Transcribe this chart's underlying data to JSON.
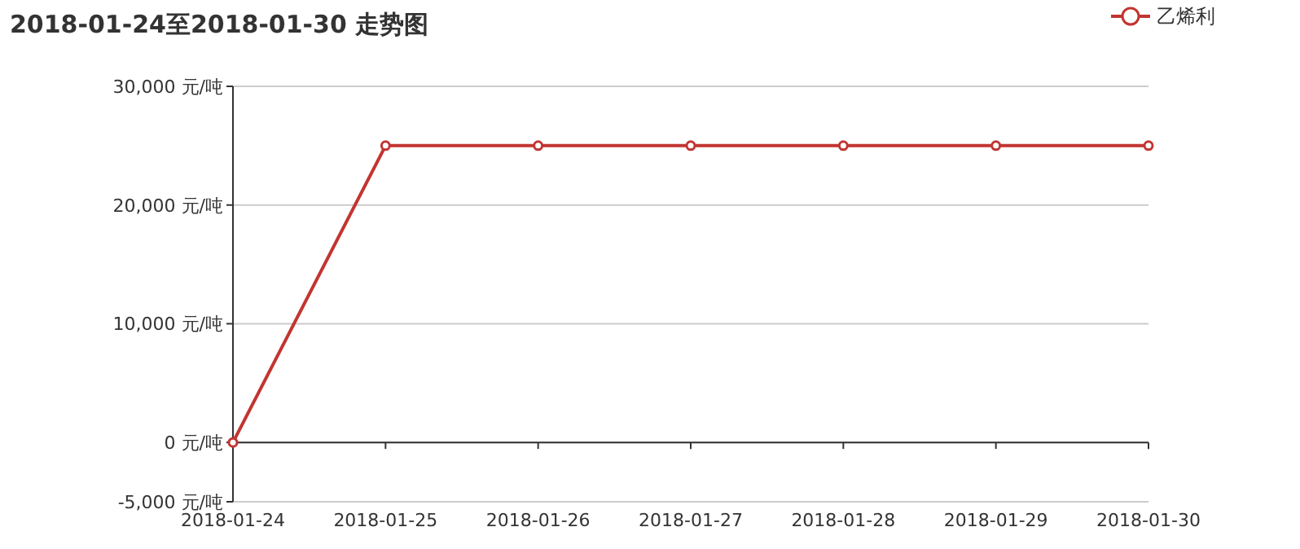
{
  "chart_data": {
    "type": "line",
    "title": "2018-01-24至2018-01-30 走势图",
    "categories": [
      "2018-01-24",
      "2018-01-25",
      "2018-01-26",
      "2018-01-27",
      "2018-01-28",
      "2018-01-29",
      "2018-01-30"
    ],
    "series": [
      {
        "name": "乙烯利",
        "color": "#c23531",
        "values": [
          0,
          25000,
          25000,
          25000,
          25000,
          25000,
          25000
        ]
      }
    ],
    "ylim": [
      -5000,
      30000
    ],
    "yticks": [
      {
        "value": -5000,
        "label": "-5,000 元/吨"
      },
      {
        "value": 0,
        "label": "0 元/吨"
      },
      {
        "value": 10000,
        "label": "10,000 元/吨"
      },
      {
        "value": 20000,
        "label": "20,000 元/吨"
      },
      {
        "value": 30000,
        "label": "30,000 元/吨"
      }
    ],
    "grid": "y",
    "legend": "top right",
    "marker": "circle",
    "line_style": "solid"
  }
}
